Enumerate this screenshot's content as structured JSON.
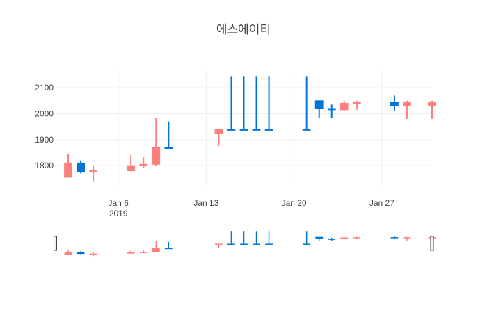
{
  "chart_data": {
    "type": "candlestick",
    "title": "에스에이티",
    "xlabel": "",
    "ylabel": "",
    "x_range": [
      "2019-01-01",
      "2019-01-31"
    ],
    "y_range": [
      1720,
      2170
    ],
    "y_ticks": [
      1800,
      1900,
      2000,
      2100
    ],
    "x_ticks": [
      {
        "date": "2019-01-06",
        "label": "Jan 6",
        "sublabel": "2019"
      },
      {
        "date": "2019-01-13",
        "label": "Jan 13",
        "sublabel": ""
      },
      {
        "date": "2019-01-20",
        "label": "Jan 20",
        "sublabel": ""
      },
      {
        "date": "2019-01-27",
        "label": "Jan 27",
        "sublabel": ""
      }
    ],
    "increasing_color": "#0074D9",
    "decreasing_color": "#FF7F7F",
    "rangeslider": true,
    "grid": true,
    "legend": "none",
    "candles": [
      {
        "date": "2019-01-02",
        "open": 1810,
        "high": 1845,
        "low": 1755,
        "close": 1755
      },
      {
        "date": "2019-01-03",
        "open": 1775,
        "high": 1820,
        "low": 1770,
        "close": 1810
      },
      {
        "date": "2019-01-04",
        "open": 1780,
        "high": 1800,
        "low": 1740,
        "close": 1775
      },
      {
        "date": "2019-01-07",
        "open": 1800,
        "high": 1840,
        "low": 1780,
        "close": 1780
      },
      {
        "date": "2019-01-08",
        "open": 1805,
        "high": 1835,
        "low": 1790,
        "close": 1800
      },
      {
        "date": "2019-01-09",
        "open": 1870,
        "high": 1985,
        "low": 1800,
        "close": 1805
      },
      {
        "date": "2019-01-10",
        "open": 1870,
        "high": 1970,
        "low": 1870,
        "close": 1870
      },
      {
        "date": "2019-01-14",
        "open": 1940,
        "high": 1940,
        "low": 1875,
        "close": 1925
      },
      {
        "date": "2019-01-15",
        "open": 1940,
        "high": 2145,
        "low": 1940,
        "close": 1940
      },
      {
        "date": "2019-01-16",
        "open": 1940,
        "high": 2145,
        "low": 1940,
        "close": 1940
      },
      {
        "date": "2019-01-17",
        "open": 1940,
        "high": 2145,
        "low": 1940,
        "close": 1940
      },
      {
        "date": "2019-01-18",
        "open": 1940,
        "high": 2145,
        "low": 1940,
        "close": 1940
      },
      {
        "date": "2019-01-21",
        "open": 1940,
        "high": 2145,
        "low": 1940,
        "close": 1940
      },
      {
        "date": "2019-01-22",
        "open": 2020,
        "high": 2050,
        "low": 1985,
        "close": 2050
      },
      {
        "date": "2019-01-23",
        "open": 2015,
        "high": 2035,
        "low": 1985,
        "close": 2020
      },
      {
        "date": "2019-01-24",
        "open": 2040,
        "high": 2050,
        "low": 2010,
        "close": 2015
      },
      {
        "date": "2019-01-25",
        "open": 2045,
        "high": 2050,
        "low": 2015,
        "close": 2040
      },
      {
        "date": "2019-01-28",
        "open": 2030,
        "high": 2070,
        "low": 2010,
        "close": 2045
      },
      {
        "date": "2019-01-29",
        "open": 2045,
        "high": 2050,
        "low": 1980,
        "close": 2030
      },
      {
        "date": "2019-01-31",
        "open": 2045,
        "high": 2050,
        "low": 1980,
        "close": 2030
      }
    ]
  }
}
